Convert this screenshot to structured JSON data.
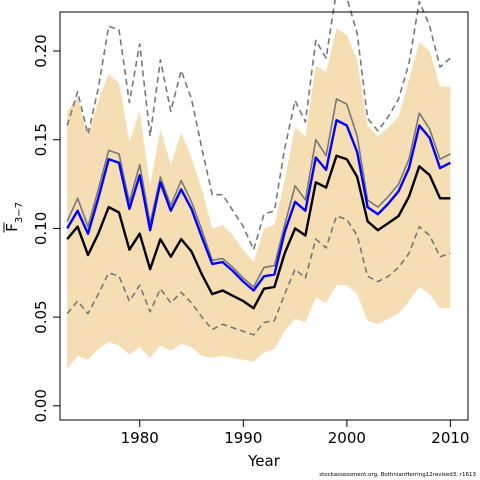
{
  "chart_data": {
    "type": "line",
    "xlabel": "Year",
    "ylabel_main": "F",
    "ylabel_sub": "3−7",
    "xlim": [
      1972.3,
      2011.7
    ],
    "ylim": [
      -0.008,
      0.222
    ],
    "x_ticks": [
      1980,
      1990,
      2000,
      2010
    ],
    "x_tick_labels": [
      "1980",
      "1990",
      "2000",
      "2010"
    ],
    "y_ticks": [
      0.0,
      0.05,
      0.1,
      0.15,
      0.2
    ],
    "y_tick_labels": [
      "0.00",
      "0.05",
      "0.10",
      "0.15",
      "0.20"
    ],
    "x": [
      1973,
      1974,
      1975,
      1976,
      1977,
      1978,
      1979,
      1980,
      1981,
      1982,
      1983,
      1984,
      1985,
      1986,
      1987,
      1988,
      1989,
      1990,
      1991,
      1992,
      1993,
      1994,
      1995,
      1996,
      1997,
      1998,
      1999,
      2000,
      2001,
      2002,
      2003,
      2004,
      2005,
      2006,
      2007,
      2008,
      2009,
      2010
    ],
    "band_upper": [
      0.166,
      0.174,
      0.152,
      0.172,
      0.187,
      0.182,
      0.149,
      0.166,
      0.124,
      0.156,
      0.136,
      0.154,
      0.14,
      0.122,
      0.1,
      0.102,
      0.096,
      0.088,
      0.081,
      0.1,
      0.102,
      0.127,
      0.157,
      0.152,
      0.192,
      0.188,
      0.213,
      0.209,
      0.195,
      0.158,
      0.152,
      0.157,
      0.163,
      0.184,
      0.205,
      0.2,
      0.18,
      0.18
    ],
    "band_lower": [
      0.021,
      0.028,
      0.026,
      0.032,
      0.036,
      0.034,
      0.029,
      0.033,
      0.027,
      0.034,
      0.031,
      0.035,
      0.033,
      0.028,
      0.027,
      0.028,
      0.027,
      0.026,
      0.025,
      0.03,
      0.032,
      0.042,
      0.049,
      0.047,
      0.061,
      0.058,
      0.068,
      0.068,
      0.063,
      0.048,
      0.046,
      0.049,
      0.052,
      0.059,
      0.067,
      0.063,
      0.055,
      0.055
    ],
    "series": [
      {
        "color": "#0000ff",
        "style": "solid",
        "values": [
          0.1,
          0.11,
          0.097,
          0.117,
          0.139,
          0.137,
          0.111,
          0.13,
          0.099,
          0.126,
          0.11,
          0.122,
          0.111,
          0.095,
          0.08,
          0.081,
          0.076,
          0.07,
          0.065,
          0.073,
          0.074,
          0.098,
          0.115,
          0.11,
          0.14,
          0.133,
          0.161,
          0.158,
          0.143,
          0.112,
          0.108,
          0.114,
          0.121,
          0.134,
          0.158,
          0.151,
          0.134,
          0.137
        ]
      },
      {
        "color": "#000000",
        "style": "solid",
        "values": [
          0.094,
          0.101,
          0.085,
          0.097,
          0.112,
          0.109,
          0.088,
          0.097,
          0.077,
          0.094,
          0.084,
          0.094,
          0.087,
          0.074,
          0.063,
          0.065,
          0.062,
          0.059,
          0.055,
          0.066,
          0.067,
          0.086,
          0.1,
          0.096,
          0.126,
          0.123,
          0.141,
          0.139,
          0.129,
          0.104,
          0.099,
          0.103,
          0.107,
          0.118,
          0.135,
          0.13,
          0.117,
          0.117
        ]
      },
      {
        "color": "#777777",
        "style": "solid",
        "values": [
          0.104,
          0.117,
          0.101,
          0.122,
          0.144,
          0.142,
          0.115,
          0.136,
          0.103,
          0.129,
          0.113,
          0.127,
          0.115,
          0.099,
          0.082,
          0.083,
          0.078,
          0.072,
          0.067,
          0.078,
          0.079,
          0.102,
          0.124,
          0.116,
          0.15,
          0.141,
          0.173,
          0.17,
          0.152,
          0.116,
          0.112,
          0.118,
          0.125,
          0.139,
          0.165,
          0.156,
          0.139,
          0.142
        ]
      },
      {
        "color": "#777777",
        "style": "dashed",
        "values": [
          0.158,
          0.177,
          0.153,
          0.179,
          0.214,
          0.212,
          0.171,
          0.204,
          0.152,
          0.195,
          0.166,
          0.189,
          0.173,
          0.145,
          0.119,
          0.119,
          0.11,
          0.101,
          0.088,
          0.108,
          0.11,
          0.145,
          0.172,
          0.16,
          0.206,
          0.196,
          0.234,
          0.23,
          0.21,
          0.162,
          0.155,
          0.163,
          0.173,
          0.193,
          0.228,
          0.214,
          0.191,
          0.196
        ]
      },
      {
        "color": "#777777",
        "style": "dashed",
        "values": [
          0.052,
          0.059,
          0.052,
          0.063,
          0.075,
          0.073,
          0.059,
          0.068,
          0.053,
          0.066,
          0.058,
          0.064,
          0.058,
          0.05,
          0.043,
          0.046,
          0.044,
          0.042,
          0.04,
          0.047,
          0.048,
          0.063,
          0.077,
          0.072,
          0.094,
          0.089,
          0.107,
          0.105,
          0.096,
          0.073,
          0.07,
          0.073,
          0.078,
          0.086,
          0.101,
          0.096,
          0.084,
          0.086
        ]
      }
    ],
    "band_color": "#f5deb3",
    "grid": false,
    "legend": "none"
  },
  "footer_text": "stockassessment.org, BothnianHerring12revised3, r1613"
}
